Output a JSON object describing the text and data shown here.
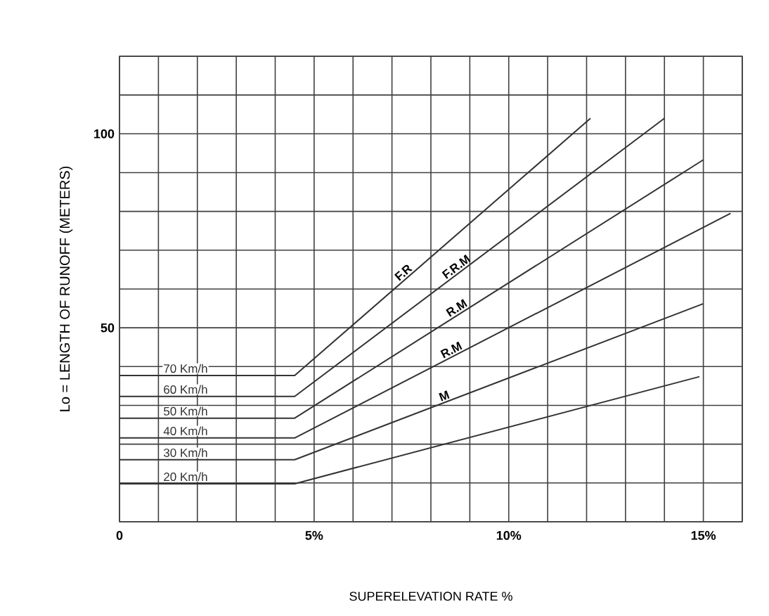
{
  "chart_data": {
    "type": "line",
    "xlabel": "SUPERELEVATION RATE %",
    "ylabel": "Lo = LENGTH OF RUNOFF (METERS)",
    "xlim": [
      0,
      16
    ],
    "ylim": [
      0,
      120
    ],
    "xticks": [
      {
        "value": 0,
        "label": "0"
      },
      {
        "value": 1,
        "label": null
      },
      {
        "value": 2,
        "label": null
      },
      {
        "value": 3,
        "label": null
      },
      {
        "value": 4,
        "label": null
      },
      {
        "value": 5,
        "label": "5%"
      },
      {
        "value": 6,
        "label": null
      },
      {
        "value": 7,
        "label": null
      },
      {
        "value": 8,
        "label": null
      },
      {
        "value": 9,
        "label": null
      },
      {
        "value": 10,
        "label": "10%"
      },
      {
        "value": 11,
        "label": null
      },
      {
        "value": 12,
        "label": null
      },
      {
        "value": 13,
        "label": null
      },
      {
        "value": 14,
        "label": null
      },
      {
        "value": 15,
        "label": "15%"
      },
      {
        "value": 16,
        "label": null
      }
    ],
    "yticks": [
      {
        "value": 0,
        "label": null
      },
      {
        "value": 10,
        "label": null
      },
      {
        "value": 20,
        "label": null
      },
      {
        "value": 30,
        "label": null
      },
      {
        "value": 40,
        "label": null
      },
      50,
      {
        "value": 60,
        "label": null
      },
      {
        "value": 70,
        "label": null
      },
      {
        "value": 80,
        "label": null
      },
      {
        "value": 90,
        "label": null
      },
      100,
      {
        "value": 110,
        "label": null
      },
      {
        "value": 120,
        "label": null
      }
    ],
    "grid": true,
    "legend": false,
    "marker": "none",
    "line_style": "solid",
    "series": [
      {
        "name": "70 Km/h",
        "color": "#333333",
        "x": [
          0,
          4.5,
          12.1
        ],
        "values": [
          37.7,
          37.7,
          104
        ]
      },
      {
        "name": "60 Km/h",
        "color": "#333333",
        "x": [
          0,
          4.5,
          14.0
        ],
        "values": [
          32.3,
          32.3,
          104
        ]
      },
      {
        "name": "50 Km/h",
        "color": "#333333",
        "x": [
          0,
          4.5,
          15.0
        ],
        "values": [
          26.7,
          26.7,
          93.3
        ]
      },
      {
        "name": "40 Km/h",
        "color": "#333333",
        "x": [
          0,
          4.5,
          15.7
        ],
        "values": [
          21.6,
          21.6,
          79.5
        ]
      },
      {
        "name": "30 Km/h",
        "color": "#333333",
        "x": [
          0,
          4.5,
          15.0
        ],
        "values": [
          16.0,
          16.0,
          56.2
        ]
      },
      {
        "name": "20 Km/h",
        "color": "#333333",
        "x": [
          0,
          4.5,
          14.9
        ],
        "values": [
          9.8,
          9.8,
          37.4
        ]
      }
    ],
    "annotations": [
      {
        "text": "F.R",
        "x": 7.4,
        "y": 63.0
      },
      {
        "text": "F.R.M",
        "x": 8.75,
        "y": 64.4
      },
      {
        "text": "R.M",
        "x": 8.75,
        "y": 53.7
      },
      {
        "text": "R.M",
        "x": 8.6,
        "y": 42.8
      },
      {
        "text": "M",
        "x": 8.4,
        "y": 30.9
      }
    ]
  }
}
